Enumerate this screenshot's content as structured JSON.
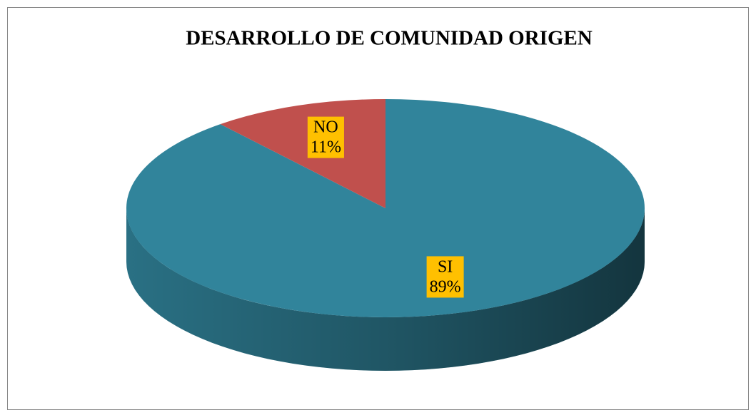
{
  "chart_data": {
    "type": "pie",
    "title": "DESARROLLO DE COMUNIDAD ORIGEN",
    "categories": [
      "SI",
      "NO"
    ],
    "values": [
      89,
      11
    ],
    "value_labels": [
      "89%",
      "11%"
    ],
    "colors": [
      "#31849b",
      "#c0504d"
    ],
    "label_background": "#ffc000"
  }
}
